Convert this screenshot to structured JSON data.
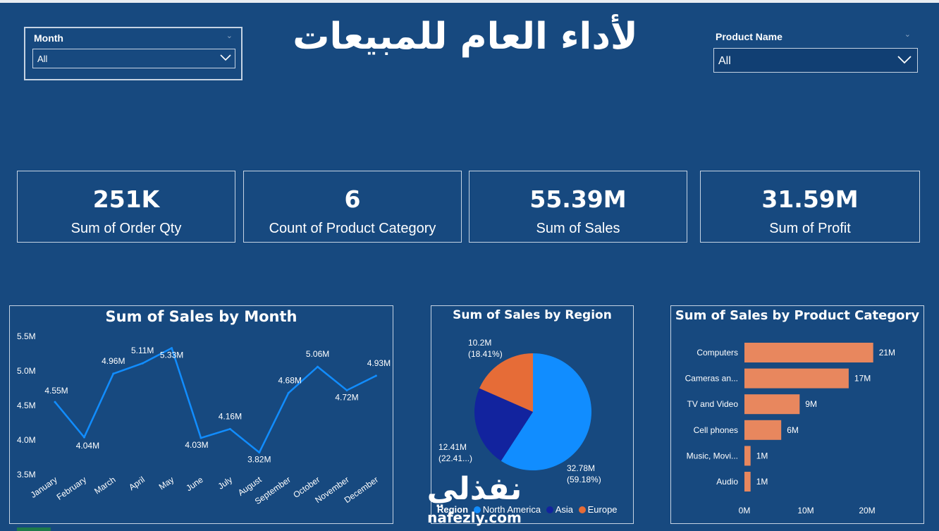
{
  "dashboard": {
    "title": "لأداء العام للمبيعات"
  },
  "slicers": {
    "month": {
      "label": "Month",
      "value": "All"
    },
    "product": {
      "label": "Product Name",
      "value": "All"
    }
  },
  "cards": [
    {
      "value": "251K",
      "label": "Sum of Order Qty"
    },
    {
      "value": "6",
      "label": "Count of Product Category"
    },
    {
      "value": "55.39M",
      "label": "Sum of Sales"
    },
    {
      "value": "31.59M",
      "label": "Sum of Profit"
    }
  ],
  "colors": {
    "background": "#17497f",
    "line": "#118dff",
    "bar": "#e8875e",
    "north_america": "#118dff",
    "asia": "#12239e",
    "europe": "#e66c37"
  },
  "chart_data": [
    {
      "type": "line",
      "title": "Sum of Sales by Month",
      "categories": [
        "January",
        "February",
        "March",
        "April",
        "May",
        "June",
        "July",
        "August",
        "September",
        "October",
        "November",
        "December"
      ],
      "values": [
        4.55,
        4.04,
        4.96,
        5.11,
        5.33,
        4.03,
        4.16,
        3.82,
        4.68,
        5.06,
        4.72,
        4.93
      ],
      "labels": [
        "4.55M",
        "4.04M",
        "4.96M",
        "5.11M",
        "5.33M",
        "4.03M",
        "4.16M",
        "3.82M",
        "4.68M",
        "5.06M",
        "4.72M",
        "4.93M"
      ],
      "yticks": [
        "3.5M",
        "4.0M",
        "4.5M",
        "5.0M",
        "5.5M"
      ],
      "ylim": [
        3.5,
        5.5
      ]
    },
    {
      "type": "pie",
      "title": "Sum of Sales by Region",
      "legend_title": "Region",
      "slices": [
        {
          "name": "North America",
          "value": 32.78,
          "label": "32.78M",
          "pct": "(59.18%)"
        },
        {
          "name": "Asia",
          "value": 12.41,
          "label": "12.41M",
          "pct": "(22.41...)"
        },
        {
          "name": "Europe",
          "value": 10.2,
          "label": "10.2M",
          "pct": "(18.41%)"
        }
      ]
    },
    {
      "type": "bar",
      "title": "Sum of Sales by Product Category",
      "categories": [
        "Computers",
        "Cameras an...",
        "TV and Video",
        "Cell phones",
        "Music, Movi...",
        "Audio"
      ],
      "values": [
        21,
        17,
        9,
        6,
        1,
        1
      ],
      "labels": [
        "21M",
        "17M",
        "9M",
        "6M",
        "1M",
        "1M"
      ],
      "xticks": [
        "0M",
        "10M",
        "20M"
      ],
      "xlim": [
        0,
        25
      ]
    }
  ],
  "watermark": {
    "arabic": "نفذلي",
    "latin": "nafezly.com"
  }
}
